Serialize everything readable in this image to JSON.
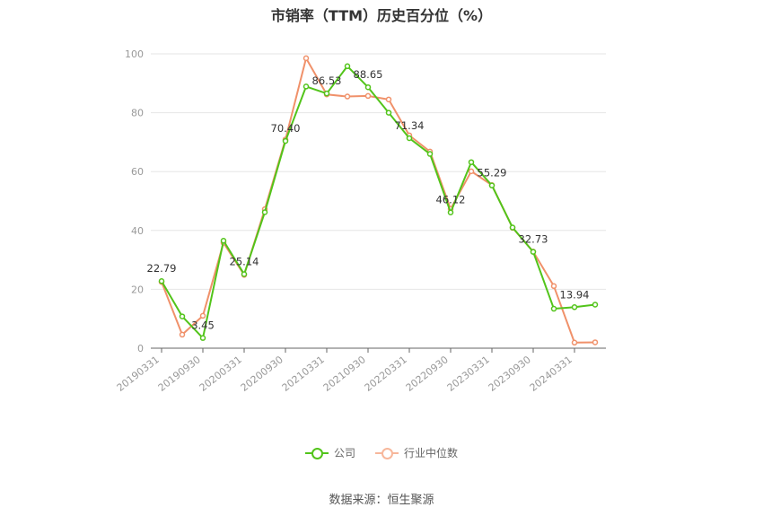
{
  "chart_data": {
    "type": "line",
    "title": "市销率（TTM）历史百分位（%）",
    "x": [
      "20190331",
      "20190630",
      "20190930",
      "20191231",
      "20200331",
      "20200630",
      "20200930",
      "20201231",
      "20210331",
      "20210630",
      "20210930",
      "20211231",
      "20220331",
      "20220630",
      "20220930",
      "20221231",
      "20230331",
      "20230630",
      "20230930",
      "20231231",
      "20240331",
      "20240630"
    ],
    "x_tick_labels": [
      "20190331",
      "20190930",
      "20200331",
      "20200930",
      "20210331",
      "20210930",
      "20220331",
      "20220930",
      "20230331",
      "20230930",
      "20240331"
    ],
    "y_ticks": [
      0,
      20,
      40,
      60,
      80,
      100
    ],
    "ylim": [
      0,
      100
    ],
    "grid": true,
    "legend_position": "bottom-center",
    "series": [
      {
        "name": "公司",
        "color": "#52c41a",
        "values": [
          22.79,
          10.8,
          3.45,
          36.5,
          25.14,
          46.2,
          70.4,
          88.9,
          86.53,
          95.8,
          88.65,
          80.0,
          71.34,
          66.0,
          46.12,
          63.2,
          55.29,
          41.0,
          32.73,
          13.4,
          13.94,
          14.8
        ],
        "data_labels": [
          {
            "index": 0,
            "text": "22.79"
          },
          {
            "index": 2,
            "text": "3.45"
          },
          {
            "index": 4,
            "text": "25.14"
          },
          {
            "index": 6,
            "text": "70.40"
          },
          {
            "index": 8,
            "text": "86.53"
          },
          {
            "index": 10,
            "text": "88.65"
          },
          {
            "index": 12,
            "text": "71.34"
          },
          {
            "index": 14,
            "text": "46.12"
          },
          {
            "index": 16,
            "text": "55.29"
          },
          {
            "index": 18,
            "text": "32.73"
          },
          {
            "index": 20,
            "text": "13.94"
          }
        ]
      },
      {
        "name": "行业中位数",
        "color": "#f0916a",
        "values": [
          22.5,
          4.6,
          11.0,
          35.8,
          24.9,
          47.2,
          70.9,
          98.5,
          86.2,
          85.5,
          85.7,
          84.5,
          72.3,
          66.8,
          47.3,
          60.1,
          55.4,
          40.9,
          32.8,
          21.1,
          1.9,
          2.0
        ]
      }
    ]
  },
  "source_text": "数据来源：恒生聚源"
}
